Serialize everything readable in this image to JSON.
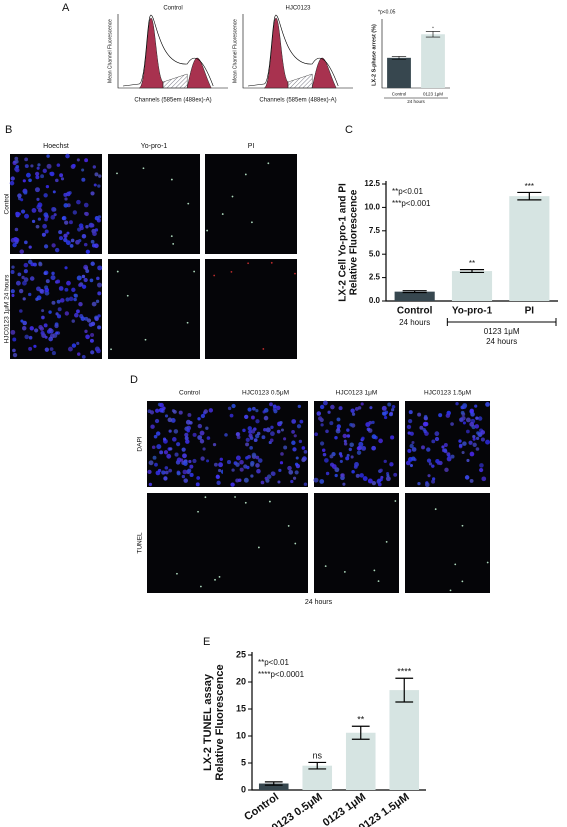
{
  "panels": {
    "a": "A",
    "b": "B",
    "c": "C",
    "d": "D",
    "e": "E"
  },
  "histograms": [
    {
      "title": "Control",
      "ylabel": "Mean Channel Fluorescence",
      "xlabel": "Channels (585em (488ex)-A)"
    },
    {
      "title": "HJC0123",
      "ylabel": "Mean Channel Fluorescence",
      "xlabel": "Channels (585em (488ex)-A)"
    }
  ],
  "panel_b": {
    "columns": [
      "Hoechst",
      "Yo-pro-1",
      "PI"
    ],
    "rows": [
      "Control",
      "HJC0123 1μM 24 hours"
    ]
  },
  "panel_d": {
    "columns": [
      "Control",
      "HJC0123 0.5μM",
      "HJC0123 1μM",
      "HJC0123 1.5μM"
    ],
    "rows": [
      "DAPI",
      "TUNEL"
    ],
    "footer": "24 hours"
  },
  "chart_data": [
    {
      "type": "bar",
      "ylabel": [
        "LX-2 S-phase arrest (%)"
      ],
      "annotations": [
        "*p<0.05"
      ],
      "categories": [
        "Control",
        "0123 1μM"
      ],
      "values": [
        32,
        57
      ],
      "errors": [
        1.5,
        3
      ],
      "significance": [
        null,
        "*"
      ],
      "colors": [
        "#37474f",
        "#d6e4e2"
      ],
      "xlabel": "24 hours",
      "ylim": [
        0,
        70
      ]
    },
    {
      "type": "bar",
      "ylabel": [
        "LX-2 Cell Yo-pro-1 and PI",
        "Relative Fluorescence"
      ],
      "annotations": [
        "**p<0.01",
        "***p<0.001"
      ],
      "categories": [
        "Control",
        "Yo-pro-1",
        "PI"
      ],
      "values": [
        1.0,
        3.2,
        11.2
      ],
      "errors": [
        0.1,
        0.15,
        0.4
      ],
      "significance": [
        null,
        "**",
        "***"
      ],
      "colors": [
        "#37474f",
        "#d6e4e2",
        "#d6e4e2"
      ],
      "control_note": "24 hours",
      "bracket": {
        "label": "0123 1μM",
        "note": "24 hours"
      },
      "ylim": [
        0,
        12.5
      ],
      "yticks": [
        {
          "value": 0,
          "label": "0.0"
        },
        {
          "value": 2.5,
          "label": "2.5"
        },
        {
          "value": 5,
          "label": "5.0"
        },
        {
          "value": 7.5,
          "label": "7.5"
        },
        {
          "value": 10,
          "label": "10.0"
        },
        {
          "value": 12.5,
          "label": "12.5"
        }
      ]
    },
    {
      "type": "bar",
      "ylabel": [
        "LX-2 TUNEL assay",
        "Relative Fluorescence"
      ],
      "annotations": [
        "**p<0.01",
        "****p<0.0001"
      ],
      "categories": [
        "Control",
        "0123 0.5μM",
        "0123 1μM",
        "0123 1.5μM"
      ],
      "values": [
        1.2,
        4.5,
        10.6,
        18.5
      ],
      "errors": [
        0.3,
        0.6,
        1.2,
        2.2
      ],
      "significance": [
        null,
        "ns",
        "**",
        "****"
      ],
      "colors": [
        "#37474f",
        "#d6e4e2",
        "#d6e4e2",
        "#d6e4e2"
      ],
      "ylim": [
        0,
        25
      ],
      "yticks": [
        0,
        5,
        10,
        15,
        20,
        25
      ]
    }
  ]
}
